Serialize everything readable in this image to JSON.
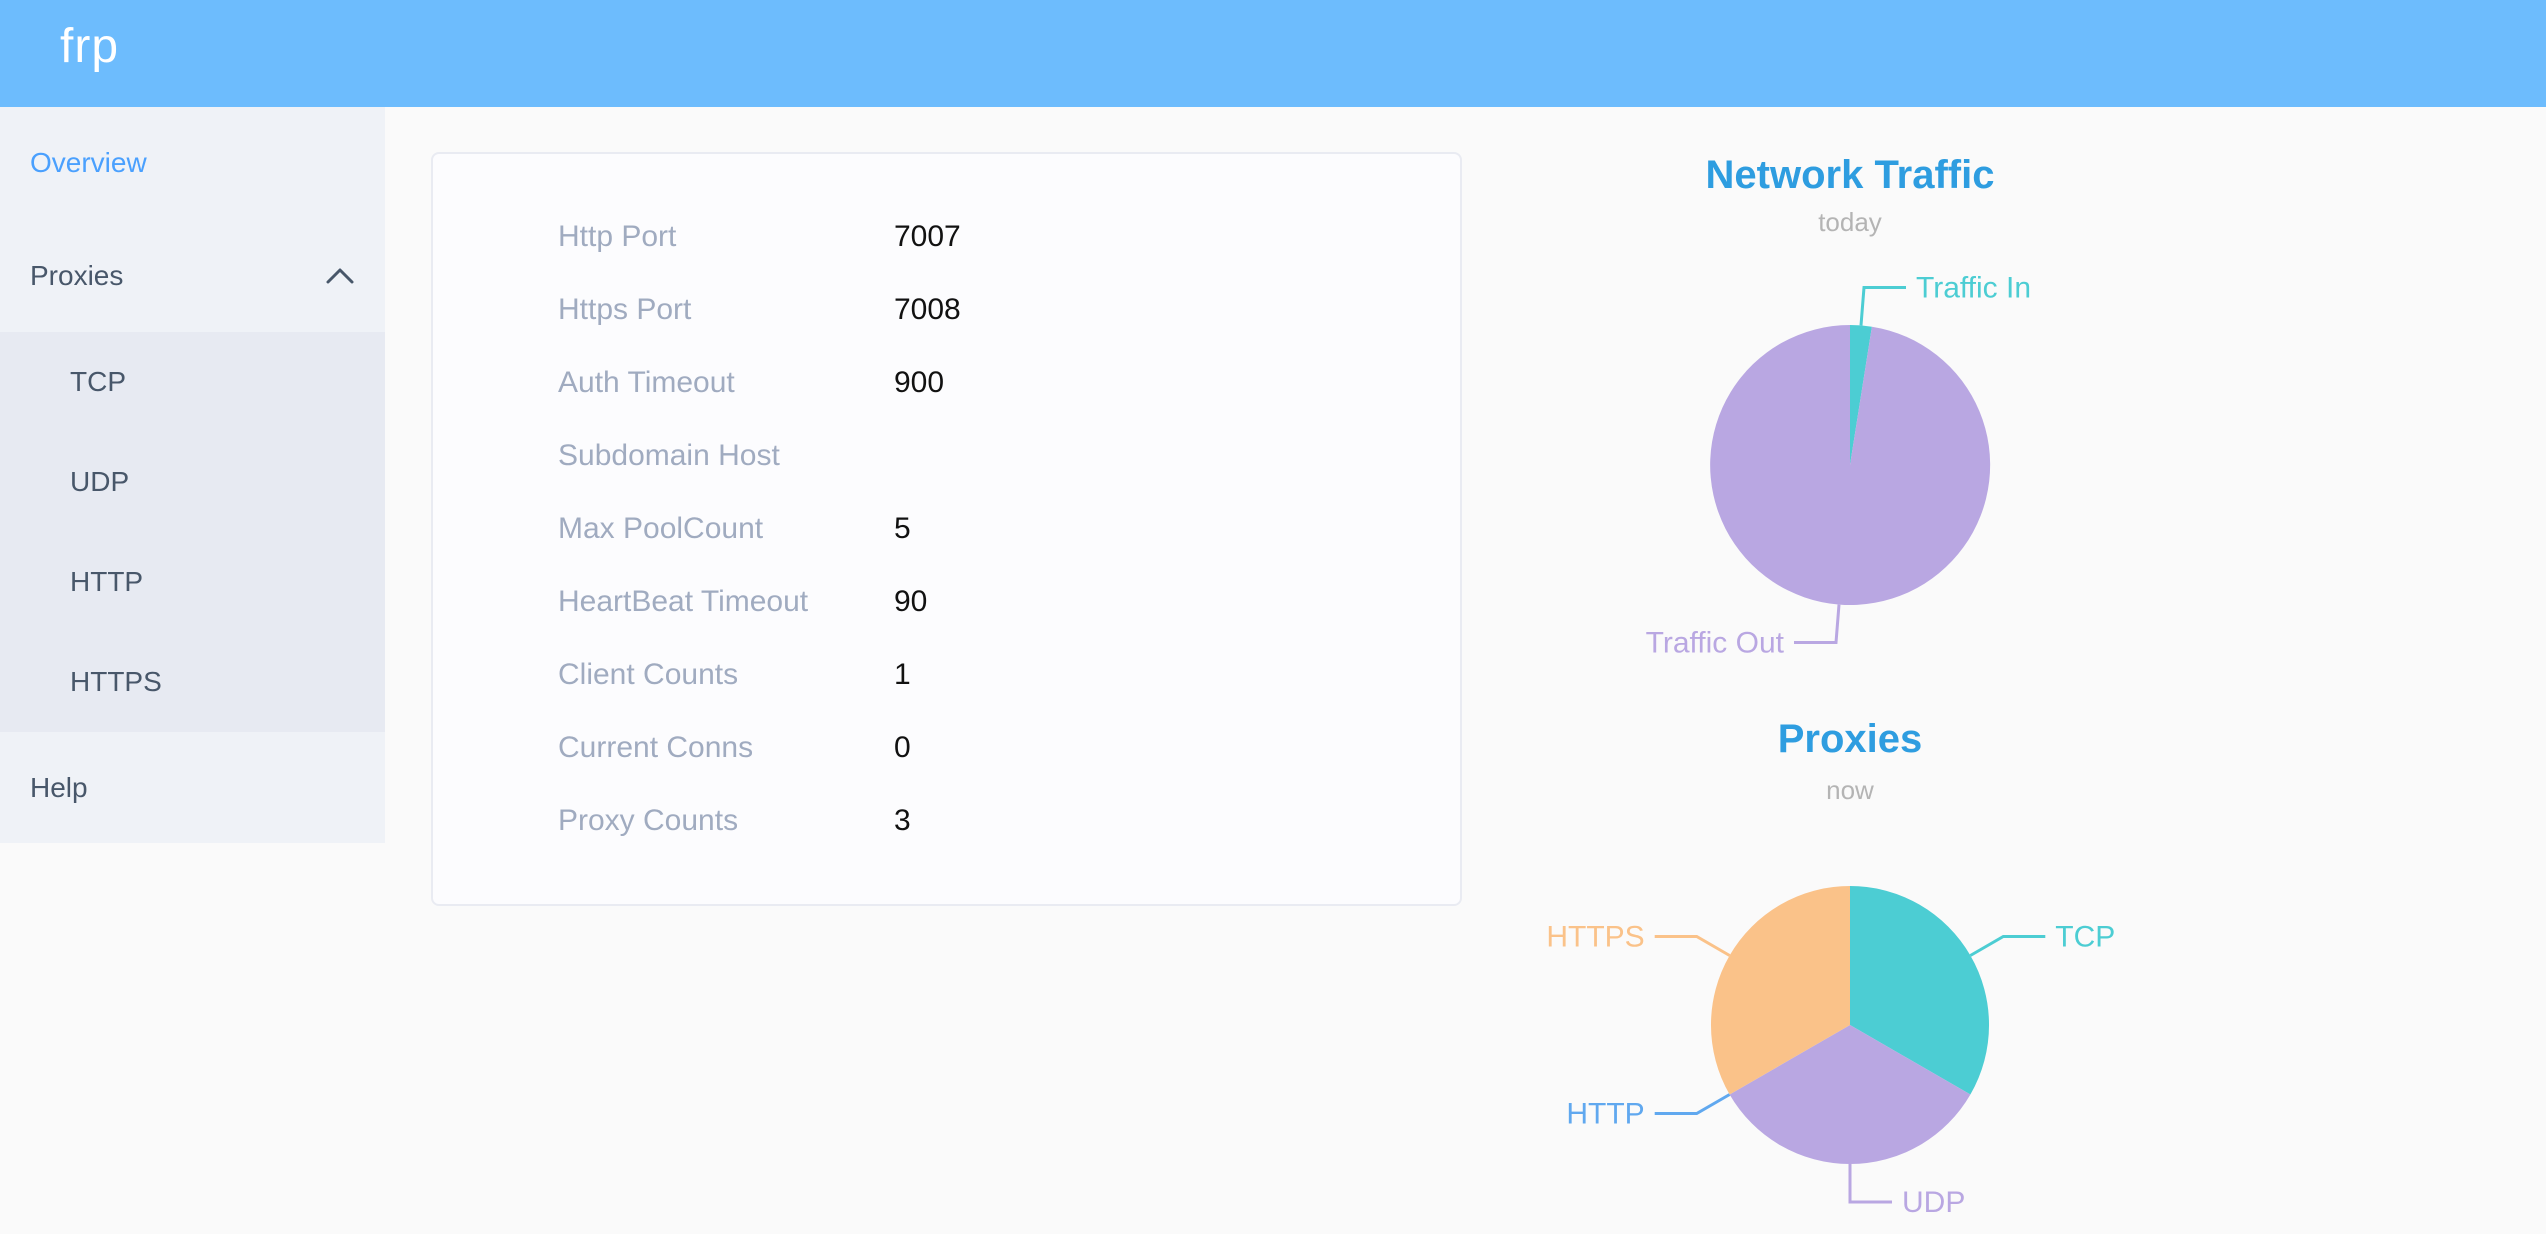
{
  "header": {
    "logo_text": "frp"
  },
  "sidebar": {
    "items": [
      {
        "id": "overview",
        "label": "Overview",
        "active": true
      },
      {
        "id": "proxies",
        "label": "Proxies",
        "expanded": true,
        "icon": "chevron-up-icon",
        "children": [
          {
            "id": "tcp",
            "label": "TCP"
          },
          {
            "id": "udp",
            "label": "UDP"
          },
          {
            "id": "http",
            "label": "HTTP"
          },
          {
            "id": "https",
            "label": "HTTPS"
          }
        ]
      },
      {
        "id": "help",
        "label": "Help"
      }
    ]
  },
  "overview": {
    "rows": [
      {
        "label": "Http Port",
        "value": "7007"
      },
      {
        "label": "Https Port",
        "value": "7008"
      },
      {
        "label": "Auth Timeout",
        "value": "900"
      },
      {
        "label": "Subdomain Host",
        "value": ""
      },
      {
        "label": "Max PoolCount",
        "value": "5"
      },
      {
        "label": "HeartBeat Timeout",
        "value": "90"
      },
      {
        "label": "Client Counts",
        "value": "1"
      },
      {
        "label": "Current Conns",
        "value": "0"
      },
      {
        "label": "Proxy Counts",
        "value": "3"
      }
    ]
  },
  "chart_data": [
    {
      "type": "pie",
      "title": "Network Traffic",
      "subtitle": "today",
      "legend_position": "callout-labels",
      "values_are_percent_estimates": true,
      "slices": [
        {
          "label": "Traffic In",
          "value": 2.5,
          "color": "#4ccdd3"
        },
        {
          "label": "Traffic Out",
          "value": 97.5,
          "color": "#b9a7e2"
        }
      ]
    },
    {
      "type": "pie",
      "title": "Proxies",
      "subtitle": "now",
      "legend_position": "callout-labels",
      "slices": [
        {
          "label": "TCP",
          "value": 1,
          "color": "#4ccdd3"
        },
        {
          "label": "UDP",
          "value": 1,
          "color": "#b9a7e2"
        },
        {
          "label": "HTTP",
          "value": 0,
          "color": "#60a8ef"
        },
        {
          "label": "HTTPS",
          "value": 1,
          "color": "#fac289"
        }
      ]
    }
  ],
  "colors": {
    "header_bg": "#6dbcfd",
    "sidebar_bg": "#eff2f7",
    "submenu_bg": "#e7eaf2",
    "active_link": "#4aa0fe",
    "menu_text": "#48576a",
    "chart_title": "#2e9de0",
    "subtitle_gray": "#b4b4b4",
    "table_label": "#a0abc0",
    "table_value": "#111111",
    "page_bg": "#fafafa"
  }
}
